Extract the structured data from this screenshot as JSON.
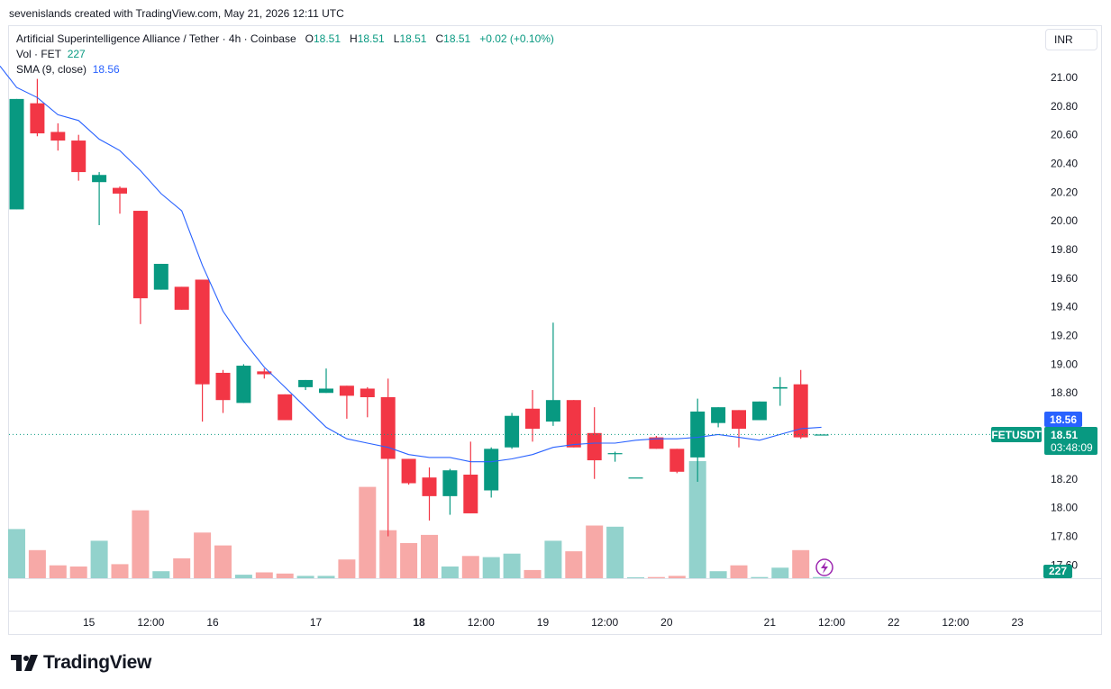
{
  "header": {
    "credit": "sevenislands created with TradingView.com, May 21, 2026 12:11 UTC"
  },
  "legend": {
    "symbol": "Artificial Superintelligence Alliance / Tether · 4h · Coinbase",
    "o_label": "O",
    "o": "18.51",
    "h_label": "H",
    "h": "18.51",
    "l_label": "L",
    "l": "18.51",
    "c_label": "C",
    "c": "18.51",
    "change": "+0.02 (+0.10%)",
    "vol_label": "Vol · FET",
    "vol": "227",
    "sma_label": "SMA (9, close)",
    "sma": "18.56"
  },
  "currency_button": "INR",
  "logo_text": "TradingView",
  "colors": {
    "up": "#089981",
    "down": "#f23645",
    "up_vol": "#92d2cc",
    "down_vol": "#f7a9a7",
    "sma": "#2962ff"
  },
  "chart_data": {
    "type": "candlestick",
    "symbol": "FETUSDT",
    "timeframe": "4h",
    "ylim": [
      17.5,
      21.1
    ],
    "y_ticks": [
      "21.00",
      "20.80",
      "20.60",
      "20.40",
      "20.20",
      "20.00",
      "19.80",
      "19.60",
      "19.40",
      "19.20",
      "19.00",
      "18.80",
      "18.60",
      "18.40",
      "18.20",
      "18.00",
      "17.80",
      "17.60"
    ],
    "x_ticks": [
      {
        "label": "15",
        "i": 3.5
      },
      {
        "label": "12:00",
        "i": 6.5
      },
      {
        "label": "16",
        "i": 9.5
      },
      {
        "label": "17",
        "i": 14.5
      },
      {
        "label": "18",
        "i": 19.5
      },
      {
        "label": "12:00",
        "i": 22.5
      },
      {
        "label": "19",
        "i": 25.5
      },
      {
        "label": "12:00",
        "i": 28.5
      },
      {
        "label": "20",
        "i": 31.5
      },
      {
        "label": "21",
        "i": 36.5
      },
      {
        "label": "12:00",
        "i": 39.5
      },
      {
        "label": "22",
        "i": 42.5
      },
      {
        "label": "12:00",
        "i": 45.5
      },
      {
        "label": "23",
        "i": 48.5
      }
    ],
    "bold_ticks": [
      "18"
    ],
    "candles": [
      {
        "o": 20.08,
        "h": 20.85,
        "l": 20.08,
        "c": 20.85,
        "v": 42
      },
      {
        "o": 20.82,
        "h": 20.99,
        "l": 20.59,
        "c": 20.61,
        "v": 24
      },
      {
        "o": 20.62,
        "h": 20.68,
        "l": 20.49,
        "c": 20.56,
        "v": 11
      },
      {
        "o": 20.56,
        "h": 20.6,
        "l": 20.28,
        "c": 20.34,
        "v": 10
      },
      {
        "o": 20.27,
        "h": 20.34,
        "l": 19.97,
        "c": 20.32,
        "v": 32
      },
      {
        "o": 20.23,
        "h": 20.24,
        "l": 20.05,
        "c": 20.19,
        "v": 12
      },
      {
        "o": 20.07,
        "h": 20.07,
        "l": 19.28,
        "c": 19.46,
        "v": 58
      },
      {
        "o": 19.52,
        "h": 19.7,
        "l": 19.52,
        "c": 19.7,
        "v": 6
      },
      {
        "o": 19.54,
        "h": 19.54,
        "l": 19.38,
        "c": 19.38,
        "v": 17
      },
      {
        "o": 19.59,
        "h": 19.59,
        "l": 18.6,
        "c": 18.86,
        "v": 39
      },
      {
        "o": 18.94,
        "h": 18.96,
        "l": 18.66,
        "c": 18.75,
        "v": 28
      },
      {
        "o": 18.73,
        "h": 19.0,
        "l": 18.73,
        "c": 18.99,
        "v": 3
      },
      {
        "o": 18.95,
        "h": 18.97,
        "l": 18.9,
        "c": 18.93,
        "v": 5
      },
      {
        "o": 18.79,
        "h": 18.79,
        "l": 18.61,
        "c": 18.61,
        "v": 4
      },
      {
        "o": 18.84,
        "h": 18.89,
        "l": 18.82,
        "c": 18.89,
        "v": 2
      },
      {
        "o": 18.8,
        "h": 18.97,
        "l": 18.8,
        "c": 18.83,
        "v": 2
      },
      {
        "o": 18.85,
        "h": 18.85,
        "l": 18.62,
        "c": 18.78,
        "v": 16
      },
      {
        "o": 18.83,
        "h": 18.84,
        "l": 18.63,
        "c": 18.77,
        "v": 78
      },
      {
        "o": 18.77,
        "h": 18.9,
        "l": 17.8,
        "c": 18.34,
        "v": 41
      },
      {
        "o": 18.34,
        "h": 18.34,
        "l": 18.16,
        "c": 18.17,
        "v": 30
      },
      {
        "o": 18.21,
        "h": 18.28,
        "l": 17.91,
        "c": 18.08,
        "v": 37
      },
      {
        "o": 18.08,
        "h": 18.27,
        "l": 17.95,
        "c": 18.26,
        "v": 10
      },
      {
        "o": 18.23,
        "h": 18.46,
        "l": 17.96,
        "c": 17.96,
        "v": 19
      },
      {
        "o": 18.12,
        "h": 18.42,
        "l": 18.07,
        "c": 18.41,
        "v": 18
      },
      {
        "o": 18.42,
        "h": 18.66,
        "l": 18.41,
        "c": 18.64,
        "v": 21
      },
      {
        "o": 18.69,
        "h": 18.82,
        "l": 18.46,
        "c": 18.55,
        "v": 7
      },
      {
        "o": 18.6,
        "h": 19.29,
        "l": 18.57,
        "c": 18.75,
        "v": 32
      },
      {
        "o": 18.75,
        "h": 18.75,
        "l": 18.42,
        "c": 18.42,
        "v": 23
      },
      {
        "o": 18.52,
        "h": 18.7,
        "l": 18.2,
        "c": 18.33,
        "v": 45
      },
      {
        "o": 18.38,
        "h": 18.39,
        "l": 18.32,
        "c": 18.38,
        "v": 44
      },
      {
        "o": 18.21,
        "h": 18.21,
        "l": 18.21,
        "c": 18.21,
        "v": 0
      },
      {
        "o": 18.49,
        "h": 18.5,
        "l": 18.41,
        "c": 18.41,
        "v": 1
      },
      {
        "o": 18.41,
        "h": 18.41,
        "l": 18.24,
        "c": 18.25,
        "v": 2
      },
      {
        "o": 18.35,
        "h": 18.76,
        "l": 18.18,
        "c": 18.67,
        "v": 100
      },
      {
        "o": 18.59,
        "h": 18.7,
        "l": 18.56,
        "c": 18.7,
        "v": 6
      },
      {
        "o": 18.68,
        "h": 18.68,
        "l": 18.42,
        "c": 18.55,
        "v": 11
      },
      {
        "o": 18.61,
        "h": 18.74,
        "l": 18.61,
        "c": 18.74,
        "v": 1
      },
      {
        "o": 18.83,
        "h": 18.91,
        "l": 18.71,
        "c": 18.84,
        "v": 9
      },
      {
        "o": 18.86,
        "h": 18.96,
        "l": 18.48,
        "c": 18.49,
        "v": 24
      },
      {
        "o": 18.51,
        "h": 18.51,
        "l": 18.51,
        "c": 18.51,
        "v": 1
      }
    ],
    "sma": {
      "name": "SMA (9, close)",
      "values": [
        20.93,
        20.86,
        20.74,
        20.7,
        20.57,
        20.49,
        20.35,
        20.19,
        20.07,
        19.69,
        19.37,
        19.16,
        18.98,
        18.84,
        18.7,
        18.56,
        18.48,
        18.45,
        18.42,
        18.37,
        18.35,
        18.35,
        18.32,
        18.32,
        18.34,
        18.37,
        18.42,
        18.44,
        18.45,
        18.45,
        18.47,
        18.48,
        18.48,
        18.49,
        18.51,
        18.49,
        18.47,
        18.51,
        18.55,
        18.56
      ]
    },
    "price_labels": {
      "sma_value": "18.56",
      "symbol_tag": "FETUSDT",
      "last_price": "18.51",
      "countdown": "03:48:09",
      "volume": "227"
    }
  }
}
